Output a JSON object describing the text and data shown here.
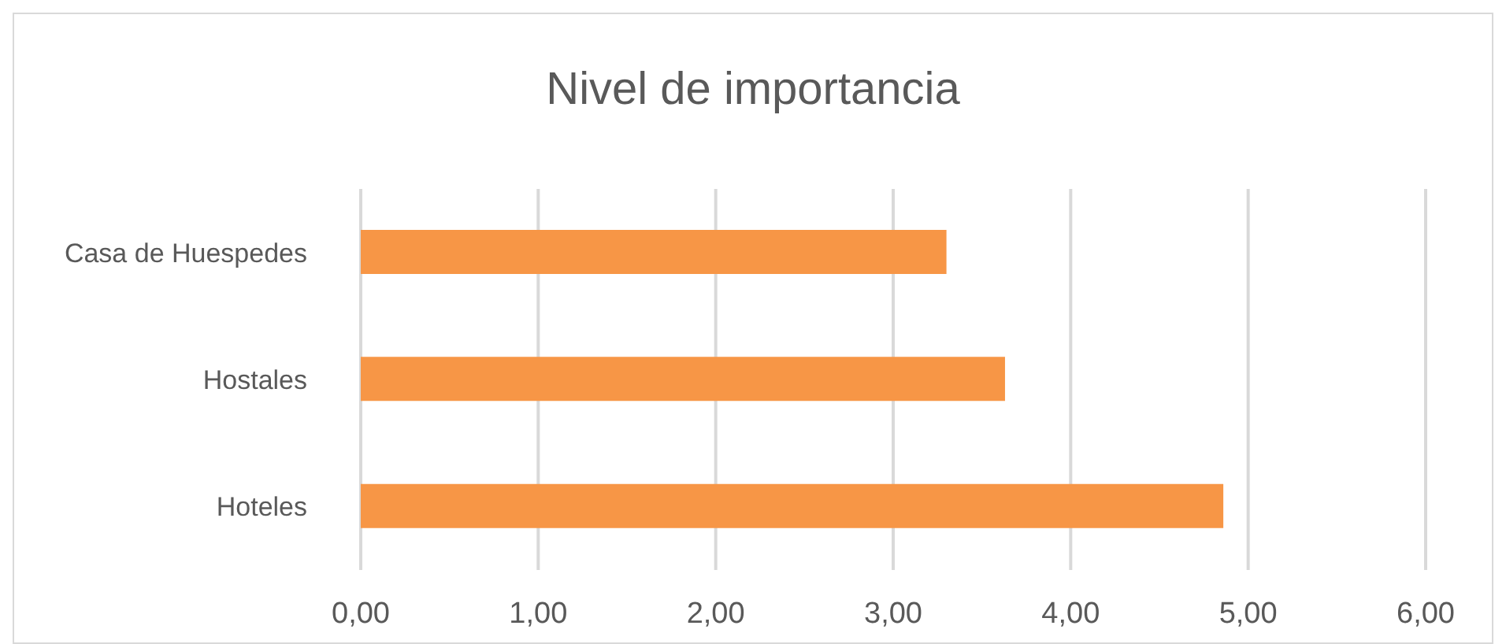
{
  "chart_data": {
    "type": "bar",
    "orientation": "horizontal",
    "title": "Nivel de importancia",
    "categories": [
      "Casa de Huespedes",
      "Hostales",
      "Hoteles"
    ],
    "values": [
      3.3,
      3.63,
      4.86
    ],
    "color": "#f79646",
    "xlim": [
      0,
      6
    ],
    "xticks": [
      {
        "value": 0,
        "label": "0,00"
      },
      {
        "value": 1,
        "label": "1,00"
      },
      {
        "value": 2,
        "label": "2,00"
      },
      {
        "value": 3,
        "label": "3,00"
      },
      {
        "value": 4,
        "label": "4,00"
      },
      {
        "value": 5,
        "label": "5,00"
      },
      {
        "value": 6,
        "label": "6,00"
      }
    ],
    "grid": "x"
  }
}
